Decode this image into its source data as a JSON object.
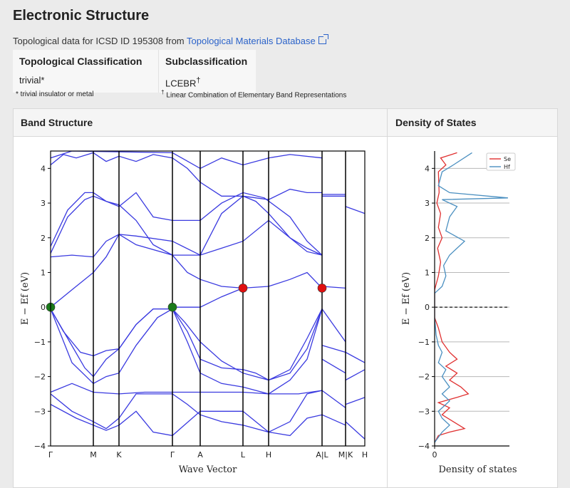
{
  "section_title": "Electronic Structure",
  "subtitle": {
    "prefix": "Topological data for ICSD ID 195308 from ",
    "link": "Topological Materials Database"
  },
  "classification": {
    "h1": "Topological Classification",
    "v1": "trivial*",
    "h2": "Subclassification",
    "v2": "LCEBR",
    "v2_mark": "†",
    "foot1": "* trivial insulator or metal",
    "foot2_mark": "†",
    "foot2": " Linear Combination of Elementary Band Representations"
  },
  "panels": {
    "band": "Band Structure",
    "dos": "Density of States"
  },
  "chart_data": [
    {
      "type": "line",
      "title": "",
      "xlabel": "Wave Vector",
      "ylabel": "E − Ef (eV)",
      "ylim": [
        -4,
        4.5
      ],
      "yticks": [
        -4,
        -3,
        -2,
        -1,
        0,
        1,
        2,
        3,
        4
      ],
      "x_ticks": [
        {
          "label": "Γ",
          "pos": 0.0
        },
        {
          "label": "M",
          "pos": 1.0
        },
        {
          "label": "K",
          "pos": 1.6
        },
        {
          "label": "Γ",
          "pos": 2.85
        },
        {
          "label": "A",
          "pos": 3.5
        },
        {
          "label": "L",
          "pos": 4.5
        },
        {
          "label": "H",
          "pos": 5.1
        },
        {
          "label": "A|L",
          "pos": 6.35
        },
        {
          "label": "M|K",
          "pos": 6.9
        },
        {
          "label": "H",
          "pos": 7.35
        }
      ],
      "xlim": [
        0,
        7.35
      ],
      "bands": [
        [
          [
            0,
            -0.05
          ],
          [
            0.4,
            -0.9
          ],
          [
            0.8,
            -1.75
          ],
          [
            1.0,
            -2.0
          ],
          [
            1.3,
            -1.5
          ],
          [
            1.6,
            -1.2
          ],
          [
            2.0,
            -0.5
          ],
          [
            2.4,
            -0.05
          ],
          [
            2.85,
            -0.05
          ],
          [
            3.2,
            -0.7
          ],
          [
            3.5,
            -1.5
          ],
          [
            4.0,
            -1.75
          ],
          [
            4.5,
            -1.8
          ],
          [
            4.8,
            -1.9
          ],
          [
            5.1,
            -2.1
          ],
          [
            5.6,
            -1.9
          ],
          [
            6.0,
            -1.2
          ],
          [
            6.35,
            -0.05
          ]
        ],
        [
          [
            0,
            -0.05
          ],
          [
            0.3,
            -0.7
          ],
          [
            0.7,
            -1.3
          ],
          [
            1.0,
            -1.4
          ],
          [
            1.3,
            -1.25
          ],
          [
            1.6,
            -1.2
          ],
          [
            2.0,
            -0.5
          ],
          [
            2.4,
            -0.05
          ],
          [
            2.85,
            -0.05
          ],
          [
            3.15,
            -0.45
          ],
          [
            3.5,
            -1.0
          ],
          [
            4.0,
            -1.55
          ],
          [
            4.5,
            -1.9
          ],
          [
            4.8,
            -2.0
          ],
          [
            5.1,
            -2.1
          ],
          [
            5.6,
            -1.8
          ],
          [
            6.0,
            -0.9
          ],
          [
            6.35,
            -0.05
          ]
        ],
        [
          [
            0,
            -0.05
          ],
          [
            0.5,
            -1.6
          ],
          [
            1.0,
            -2.2
          ],
          [
            1.3,
            -2.0
          ],
          [
            1.6,
            -1.9
          ],
          [
            2.0,
            -1.1
          ],
          [
            2.5,
            -0.3
          ],
          [
            2.85,
            -0.05
          ],
          [
            3.2,
            -1.0
          ],
          [
            3.5,
            -1.9
          ],
          [
            4.0,
            -2.2
          ],
          [
            4.5,
            -2.3
          ],
          [
            5.1,
            -2.5
          ],
          [
            5.6,
            -2.1
          ],
          [
            6.0,
            -1.5
          ],
          [
            6.35,
            -0.05
          ]
        ],
        [
          [
            0,
            -2.45
          ],
          [
            0.5,
            -2.2
          ],
          [
            1.0,
            -2.45
          ],
          [
            1.6,
            -2.5
          ],
          [
            2.2,
            -2.45
          ],
          [
            2.85,
            -2.45
          ],
          [
            3.5,
            -2.45
          ],
          [
            4.5,
            -2.45
          ],
          [
            5.1,
            -2.5
          ],
          [
            5.8,
            -2.5
          ],
          [
            6.35,
            -2.4
          ]
        ],
        [
          [
            0,
            -2.5
          ],
          [
            0.5,
            -3.0
          ],
          [
            1.0,
            -3.3
          ],
          [
            1.3,
            -3.5
          ],
          [
            1.6,
            -3.2
          ],
          [
            2.0,
            -2.5
          ],
          [
            2.85,
            -2.5
          ],
          [
            3.2,
            -2.8
          ],
          [
            3.5,
            -3.1
          ],
          [
            4.0,
            -3.3
          ],
          [
            4.5,
            -3.4
          ],
          [
            5.1,
            -3.6
          ],
          [
            5.6,
            -3.3
          ],
          [
            6.0,
            -2.5
          ],
          [
            6.35,
            -2.4
          ]
        ],
        [
          [
            0,
            -2.8
          ],
          [
            0.6,
            -3.2
          ],
          [
            1.0,
            -3.4
          ],
          [
            1.3,
            -3.55
          ],
          [
            1.6,
            -3.4
          ],
          [
            2.0,
            -3.0
          ],
          [
            2.4,
            -3.6
          ],
          [
            2.85,
            -3.7
          ],
          [
            3.5,
            -3.0
          ],
          [
            4.5,
            -3.0
          ],
          [
            5.1,
            -3.6
          ],
          [
            5.6,
            -3.7
          ],
          [
            6.0,
            -3.2
          ],
          [
            6.35,
            -3.1
          ]
        ],
        [
          [
            0,
            1.55
          ],
          [
            0.4,
            2.6
          ],
          [
            0.8,
            3.1
          ],
          [
            1.0,
            3.2
          ],
          [
            1.3,
            3.05
          ],
          [
            1.6,
            2.95
          ],
          [
            2.0,
            2.5
          ],
          [
            2.4,
            1.8
          ],
          [
            2.85,
            1.5
          ],
          [
            3.5,
            1.5
          ],
          [
            4.0,
            2.7
          ],
          [
            4.5,
            3.2
          ],
          [
            4.8,
            3.05
          ],
          [
            5.1,
            2.7
          ],
          [
            5.6,
            2.0
          ],
          [
            6.0,
            1.6
          ],
          [
            6.35,
            1.5
          ]
        ],
        [
          [
            0,
            1.75
          ],
          [
            0.4,
            2.8
          ],
          [
            0.8,
            3.3
          ],
          [
            1.0,
            3.3
          ],
          [
            1.3,
            3.05
          ],
          [
            1.6,
            2.9
          ],
          [
            2.0,
            3.3
          ],
          [
            2.4,
            2.6
          ],
          [
            2.85,
            2.5
          ],
          [
            3.5,
            2.5
          ],
          [
            4.0,
            3.0
          ],
          [
            4.5,
            3.3
          ],
          [
            5.0,
            3.15
          ],
          [
            5.6,
            2.6
          ],
          [
            6.0,
            1.9
          ],
          [
            6.35,
            1.5
          ]
        ],
        [
          [
            0,
            1.45
          ],
          [
            0.5,
            1.5
          ],
          [
            1.0,
            1.45
          ],
          [
            1.3,
            1.9
          ],
          [
            1.6,
            2.1
          ],
          [
            2.0,
            2.05
          ],
          [
            2.85,
            1.9
          ],
          [
            3.5,
            1.5
          ],
          [
            4.0,
            1.7
          ],
          [
            4.5,
            1.9
          ],
          [
            5.1,
            2.5
          ],
          [
            5.6,
            2.0
          ],
          [
            6.0,
            1.7
          ],
          [
            6.35,
            1.5
          ]
        ],
        [
          [
            0,
            0.0
          ],
          [
            0.5,
            0.5
          ],
          [
            1.0,
            1.0
          ],
          [
            1.3,
            1.45
          ],
          [
            1.6,
            2.1
          ],
          [
            2.0,
            1.8
          ],
          [
            2.85,
            1.5
          ],
          [
            3.2,
            1.0
          ],
          [
            3.5,
            0.8
          ],
          [
            4.0,
            0.6
          ],
          [
            4.5,
            0.55
          ],
          [
            5.1,
            0.6
          ],
          [
            5.6,
            0.8
          ],
          [
            6.0,
            1.0
          ],
          [
            6.35,
            0.55
          ]
        ],
        [
          [
            2.85,
            0.0
          ],
          [
            3.5,
            0.0
          ],
          [
            4.0,
            0.3
          ],
          [
            4.5,
            0.55
          ]
        ],
        [
          [
            0,
            4.1
          ],
          [
            0.3,
            4.4
          ],
          [
            0.6,
            4.3
          ],
          [
            1.0,
            4.45
          ],
          [
            1.3,
            4.2
          ],
          [
            1.6,
            4.35
          ],
          [
            2.0,
            4.2
          ],
          [
            2.4,
            4.4
          ],
          [
            2.85,
            4.3
          ],
          [
            3.2,
            4.0
          ],
          [
            3.5,
            3.6
          ],
          [
            4.0,
            3.2
          ],
          [
            4.5,
            3.2
          ],
          [
            5.1,
            3.1
          ],
          [
            5.6,
            3.4
          ],
          [
            6.0,
            3.3
          ],
          [
            6.35,
            3.3
          ]
        ],
        [
          [
            0,
            4.3
          ],
          [
            0.5,
            4.5
          ],
          [
            2.85,
            4.45
          ],
          [
            3.5,
            4.0
          ],
          [
            4.0,
            4.3
          ],
          [
            4.5,
            4.1
          ],
          [
            5.1,
            4.3
          ],
          [
            5.6,
            4.4
          ],
          [
            6.35,
            4.3
          ]
        ],
        [
          [
            6.35,
            3.25
          ],
          [
            6.9,
            3.25
          ]
        ],
        [
          [
            6.35,
            3.2
          ],
          [
            6.9,
            3.2
          ]
        ],
        [
          [
            6.35,
            0.6
          ],
          [
            6.9,
            0.55
          ]
        ],
        [
          [
            6.35,
            -0.05
          ],
          [
            6.9,
            -1.0
          ]
        ],
        [
          [
            6.35,
            -1.1
          ],
          [
            6.9,
            -1.3
          ]
        ],
        [
          [
            6.35,
            -1.5
          ],
          [
            6.9,
            -1.9
          ]
        ],
        [
          [
            6.35,
            -2.4
          ],
          [
            6.9,
            -2.9
          ]
        ],
        [
          [
            6.35,
            -3.1
          ],
          [
            6.9,
            -3.4
          ]
        ],
        [
          [
            6.9,
            2.9
          ],
          [
            7.35,
            2.7
          ]
        ],
        [
          [
            6.9,
            -1.3
          ],
          [
            7.35,
            -1.6
          ]
        ],
        [
          [
            6.9,
            -2.1
          ],
          [
            7.35,
            -1.8
          ]
        ],
        [
          [
            6.9,
            -3.3
          ],
          [
            7.35,
            -3.8
          ]
        ],
        [
          [
            6.9,
            -2.8
          ],
          [
            7.35,
            -2.6
          ]
        ]
      ],
      "markers": [
        {
          "x": 0.0,
          "y": 0.0,
          "color": "#1a7a1a"
        },
        {
          "x": 2.85,
          "y": 0.0,
          "color": "#1a7a1a"
        },
        {
          "x": 4.5,
          "y": 0.55,
          "color": "#e01010"
        },
        {
          "x": 6.35,
          "y": 0.55,
          "color": "#e01010"
        }
      ]
    },
    {
      "type": "line",
      "title": "",
      "xlabel": "Density of states",
      "ylabel": "E − Ef (eV)",
      "ylim": [
        -4,
        4.5
      ],
      "xlim": [
        0,
        1
      ],
      "xticks": [
        0
      ],
      "yticks": [
        -4,
        -3,
        -2,
        -1,
        0,
        1,
        2,
        3,
        4
      ],
      "legend": "top-right",
      "fermi_level": 0,
      "series": [
        {
          "name": "Se",
          "color": "#e03030",
          "points": [
            [
              0,
              -3.9
            ],
            [
              0.05,
              -3.7
            ],
            [
              0.2,
              -3.6
            ],
            [
              0.4,
              -3.5
            ],
            [
              0.25,
              -3.3
            ],
            [
              0.1,
              -3.1
            ],
            [
              0.2,
              -2.9
            ],
            [
              0.05,
              -2.75
            ],
            [
              0.3,
              -2.6
            ],
            [
              0.45,
              -2.5
            ],
            [
              0.35,
              -2.3
            ],
            [
              0.2,
              -2.1
            ],
            [
              0.3,
              -1.9
            ],
            [
              0.15,
              -1.7
            ],
            [
              0.3,
              -1.5
            ],
            [
              0.2,
              -1.3
            ],
            [
              0.1,
              -1.0
            ],
            [
              0.05,
              -0.6
            ],
            [
              0,
              -0.3
            ],
            [
              0,
              0
            ],
            [
              0,
              0.5
            ],
            [
              0.05,
              0.9
            ],
            [
              0.08,
              1.3
            ],
            [
              0.04,
              1.7
            ],
            [
              0.1,
              2.0
            ],
            [
              0.05,
              2.3
            ],
            [
              0.08,
              2.7
            ],
            [
              0.03,
              3.0
            ],
            [
              0.06,
              3.3
            ],
            [
              0.05,
              3.9
            ],
            [
              0.15,
              4.1
            ],
            [
              0.08,
              4.3
            ],
            [
              0.3,
              4.45
            ]
          ]
        },
        {
          "name": "Hf",
          "color": "#4a8fc0",
          "points": [
            [
              0,
              -3.9
            ],
            [
              0.1,
              -3.6
            ],
            [
              0.2,
              -3.4
            ],
            [
              0.1,
              -3.2
            ],
            [
              0.05,
              -3.0
            ],
            [
              0.15,
              -2.8
            ],
            [
              0.2,
              -2.7
            ],
            [
              0.1,
              -2.5
            ],
            [
              0.2,
              -2.3
            ],
            [
              0.1,
              -2.0
            ],
            [
              0.15,
              -1.8
            ],
            [
              0.05,
              -1.6
            ],
            [
              0.1,
              -1.3
            ],
            [
              0.05,
              -1.1
            ],
            [
              0.02,
              -0.8
            ],
            [
              0,
              -0.3
            ],
            [
              0,
              0
            ],
            [
              0,
              0.4
            ],
            [
              0.1,
              0.6
            ],
            [
              0.15,
              0.9
            ],
            [
              0.12,
              1.2
            ],
            [
              0.2,
              1.5
            ],
            [
              0.4,
              1.9
            ],
            [
              0.15,
              2.2
            ],
            [
              0.2,
              2.6
            ],
            [
              0.3,
              2.9
            ],
            [
              0.1,
              3.1
            ],
            [
              0.98,
              3.15
            ],
            [
              0.2,
              3.3
            ],
            [
              0.05,
              3.5
            ],
            [
              0.1,
              3.9
            ],
            [
              0.25,
              4.1
            ],
            [
              0.5,
              4.45
            ]
          ]
        }
      ]
    }
  ]
}
